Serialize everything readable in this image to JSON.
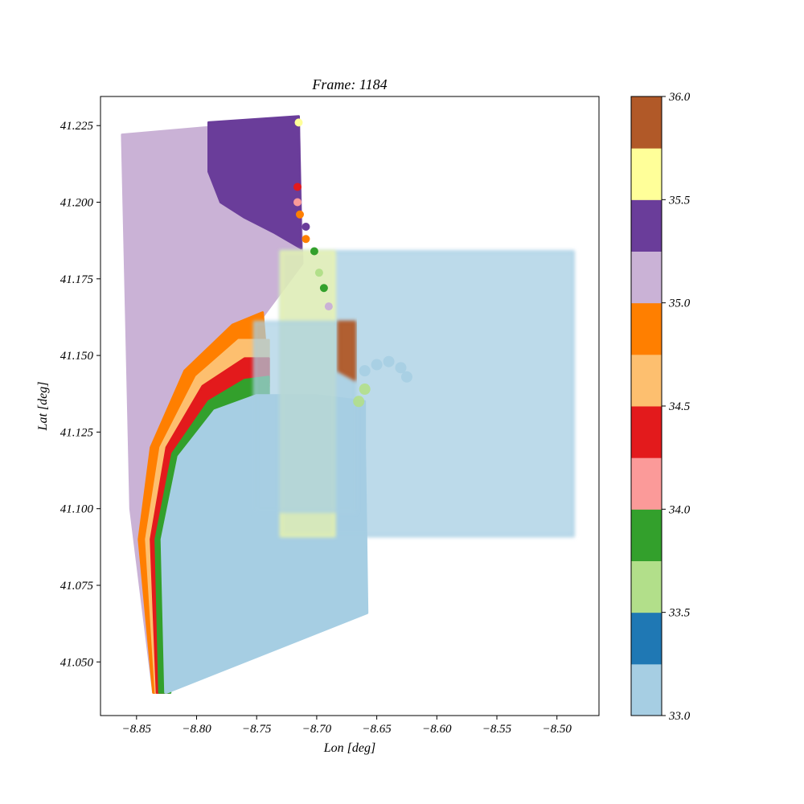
{
  "chart_data": {
    "type": "scatter",
    "title": "Frame: 1184",
    "xlabel": "Lon [deg]",
    "ylabel": "Lat [deg]",
    "xlim": [
      -8.88,
      -8.465
    ],
    "ylim": [
      41.0325,
      41.2345
    ],
    "xticks": [
      -8.85,
      -8.8,
      -8.75,
      -8.7,
      -8.65,
      -8.6,
      -8.55,
      -8.5
    ],
    "xtick_labels": [
      "−8.85",
      "−8.80",
      "−8.75",
      "−8.70",
      "−8.65",
      "−8.60",
      "−8.55",
      "−8.50"
    ],
    "yticks": [
      41.05,
      41.075,
      41.1,
      41.125,
      41.15,
      41.175,
      41.2,
      41.225
    ],
    "ytick_labels": [
      "41.050",
      "41.075",
      "41.100",
      "41.125",
      "41.150",
      "41.175",
      "41.200",
      "41.225"
    ],
    "grid": false,
    "colorbar": {
      "range": [
        33.0,
        36.0
      ],
      "ticks": [
        33.0,
        33.5,
        34.0,
        34.5,
        35.0,
        35.5,
        36.0
      ],
      "tick_labels": [
        "33.0",
        "33.5",
        "34.0",
        "34.5",
        "35.0",
        "35.5",
        "36.0"
      ],
      "colors": [
        "#a6cee3",
        "#1f78b4",
        "#b2df8a",
        "#33a02c",
        "#fb9a99",
        "#e31a1c",
        "#fdbf6f",
        "#ff7f00",
        "#cab2d6",
        "#6a3d9a",
        "#ffff99",
        "#b15928"
      ]
    },
    "fields": [
      {
        "name": "outer-grid-light-purple",
        "value": 35.1,
        "polygon": [
          [
            -8.862,
            41.222
          ],
          [
            -8.715,
            41.227
          ],
          [
            -8.712,
            41.18
          ],
          [
            -8.75,
            41.16
          ],
          [
            -8.79,
            41.14
          ],
          [
            -8.815,
            41.12
          ],
          [
            -8.83,
            41.08
          ],
          [
            -8.828,
            41.04
          ],
          [
            -8.836,
            41.04
          ],
          [
            -8.855,
            41.1
          ]
        ]
      },
      {
        "name": "purple-patch",
        "value": 35.4,
        "polygon": [
          [
            -8.79,
            41.226
          ],
          [
            -8.715,
            41.228
          ],
          [
            -8.713,
            41.185
          ],
          [
            -8.735,
            41.19
          ],
          [
            -8.76,
            41.195
          ],
          [
            -8.78,
            41.2
          ],
          [
            -8.79,
            41.21
          ]
        ]
      },
      {
        "name": "orange-arc",
        "value": 34.9,
        "polygon": [
          [
            -8.836,
            41.04
          ],
          [
            -8.848,
            41.09
          ],
          [
            -8.838,
            41.12
          ],
          [
            -8.81,
            41.145
          ],
          [
            -8.77,
            41.16
          ],
          [
            -8.745,
            41.164
          ],
          [
            -8.74,
            41.14
          ],
          [
            -8.76,
            41.136
          ],
          [
            -8.79,
            41.125
          ],
          [
            -8.812,
            41.105
          ],
          [
            -8.824,
            41.075
          ],
          [
            -8.826,
            41.04
          ]
        ]
      },
      {
        "name": "light-orange-arc",
        "value": 34.6,
        "polygon": [
          [
            -8.834,
            41.04
          ],
          [
            -8.842,
            41.09
          ],
          [
            -8.83,
            41.12
          ],
          [
            -8.8,
            41.143
          ],
          [
            -8.765,
            41.155
          ],
          [
            -8.74,
            41.155
          ],
          [
            -8.74,
            41.14
          ],
          [
            -8.77,
            41.137
          ],
          [
            -8.8,
            41.122
          ],
          [
            -8.818,
            41.1
          ],
          [
            -8.825,
            41.07
          ],
          [
            -8.824,
            41.04
          ]
        ]
      },
      {
        "name": "red-arc",
        "value": 34.4,
        "polygon": [
          [
            -8.833,
            41.04
          ],
          [
            -8.838,
            41.09
          ],
          [
            -8.825,
            41.12
          ],
          [
            -8.795,
            41.14
          ],
          [
            -8.76,
            41.149
          ],
          [
            -8.74,
            41.149
          ],
          [
            -8.74,
            41.141
          ],
          [
            -8.768,
            41.139
          ],
          [
            -8.797,
            41.125
          ],
          [
            -8.815,
            41.102
          ],
          [
            -8.822,
            41.07
          ],
          [
            -8.823,
            41.04
          ]
        ]
      },
      {
        "name": "green-arc",
        "value": 33.9,
        "polygon": [
          [
            -8.831,
            41.04
          ],
          [
            -8.834,
            41.09
          ],
          [
            -8.82,
            41.118
          ],
          [
            -8.79,
            41.135
          ],
          [
            -8.76,
            41.142
          ],
          [
            -8.74,
            41.143
          ],
          [
            -8.74,
            41.137
          ],
          [
            -8.765,
            41.135
          ],
          [
            -8.79,
            41.124
          ],
          [
            -8.81,
            41.104
          ],
          [
            -8.819,
            41.075
          ],
          [
            -8.822,
            41.04
          ]
        ]
      },
      {
        "name": "light-blue-fill",
        "value": 33.1,
        "polygon": [
          [
            -8.826,
            41.04
          ],
          [
            -8.829,
            41.09
          ],
          [
            -8.815,
            41.117
          ],
          [
            -8.785,
            41.132
          ],
          [
            -8.75,
            41.137
          ],
          [
            -8.72,
            41.137
          ],
          [
            -8.7,
            41.137
          ],
          [
            -8.66,
            41.135
          ],
          [
            -8.66,
            41.12
          ],
          [
            -8.658,
            41.066
          ],
          [
            -8.825,
            41.04
          ]
        ]
      },
      {
        "name": "east-box-light-blue",
        "value": 33.0,
        "polygon": [
          [
            -8.73,
            41.184
          ],
          [
            -8.486,
            41.184
          ],
          [
            -8.486,
            41.091
          ],
          [
            -8.73,
            41.091
          ]
        ]
      },
      {
        "name": "inner-box-yellow",
        "value": 35.6,
        "polygon": [
          [
            -8.73,
            41.184
          ],
          [
            -8.685,
            41.184
          ],
          [
            -8.685,
            41.091
          ],
          [
            -8.73,
            41.091
          ]
        ]
      },
      {
        "name": "center-box-grey-blue",
        "value": 33.2,
        "polygon": [
          [
            -8.752,
            41.161
          ],
          [
            -8.668,
            41.161
          ],
          [
            -8.668,
            41.099
          ],
          [
            -8.752,
            41.099
          ]
        ]
      },
      {
        "name": "center-box-brown-edge",
        "value": 35.9,
        "polygon": [
          [
            -8.682,
            41.161
          ],
          [
            -8.668,
            41.161
          ],
          [
            -8.668,
            41.142
          ],
          [
            -8.682,
            41.145
          ]
        ]
      }
    ],
    "point_trail": [
      {
        "lon": -8.715,
        "lat": 41.226,
        "value": 35.6
      },
      {
        "lon": -8.716,
        "lat": 41.205,
        "value": 34.4
      },
      {
        "lon": -8.716,
        "lat": 41.2,
        "value": 34.2
      },
      {
        "lon": -8.714,
        "lat": 41.196,
        "value": 34.9
      },
      {
        "lon": -8.709,
        "lat": 41.192,
        "value": 35.4
      },
      {
        "lon": -8.709,
        "lat": 41.188,
        "value": 34.9
      },
      {
        "lon": -8.702,
        "lat": 41.184,
        "value": 33.9
      },
      {
        "lon": -8.698,
        "lat": 41.177,
        "value": 33.7
      },
      {
        "lon": -8.694,
        "lat": 41.172,
        "value": 33.8
      },
      {
        "lon": -8.69,
        "lat": 41.166,
        "value": 35.1
      }
    ],
    "plume": [
      {
        "lon": -8.66,
        "lat": 41.145,
        "value": 33.1
      },
      {
        "lon": -8.65,
        "lat": 41.147,
        "value": 33.1
      },
      {
        "lon": -8.64,
        "lat": 41.148,
        "value": 33.1
      },
      {
        "lon": -8.63,
        "lat": 41.146,
        "value": 33.1
      },
      {
        "lon": -8.625,
        "lat": 41.143,
        "value": 33.1
      },
      {
        "lon": -8.66,
        "lat": 41.139,
        "value": 33.7
      },
      {
        "lon": -8.665,
        "lat": 41.135,
        "value": 33.7
      }
    ]
  }
}
